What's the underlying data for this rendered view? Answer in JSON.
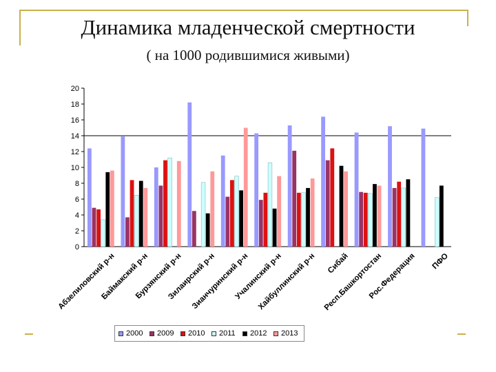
{
  "page": {
    "title": "Динамика младенческой смертности",
    "subtitle": "( на 1000 родившимися живыми)"
  },
  "chart_data": {
    "type": "bar",
    "title": "",
    "xlabel": "",
    "ylabel": "",
    "ylim": [
      0,
      20
    ],
    "yticks": [
      0,
      2,
      4,
      6,
      8,
      10,
      12,
      14,
      16,
      18,
      20
    ],
    "reference_line": 14,
    "legend_position": "bottom",
    "grid": false,
    "categories": [
      "Абзелиловский р-н",
      "Баймакский р-н",
      "Бурзянский р-н",
      "Зилаирский р-н",
      "Зианчуринский р-н",
      "Учалинский р-н",
      "Хайбуллинский р-н",
      "Сибай",
      "Респ.Башкортостан",
      "Рос.Федерация",
      "ПФО"
    ],
    "series": [
      {
        "name": "2000",
        "color": "#9999ff",
        "values": [
          12.4,
          13.9,
          10.0,
          18.2,
          11.5,
          14.3,
          15.3,
          16.4,
          14.4,
          15.2,
          14.9
        ]
      },
      {
        "name": "2009",
        "color": "#993366",
        "values": [
          4.9,
          3.7,
          7.7,
          4.5,
          6.3,
          5.9,
          12.1,
          10.9,
          6.9,
          7.4,
          null
        ]
      },
      {
        "name": "2010",
        "color": "#dd1111",
        "values": [
          4.7,
          8.4,
          10.9,
          null,
          8.4,
          6.8,
          6.8,
          12.4,
          6.8,
          8.2,
          null
        ]
      },
      {
        "name": "2011",
        "color": "#ccffff",
        "values": [
          3.4,
          6.5,
          11.2,
          8.1,
          8.9,
          10.6,
          6.8,
          null,
          6.7,
          7.4,
          6.2
        ]
      },
      {
        "name": "2012",
        "color": "#000000",
        "values": [
          9.4,
          8.3,
          null,
          4.2,
          7.1,
          4.8,
          7.4,
          10.2,
          7.9,
          8.5,
          7.7
        ]
      },
      {
        "name": "2013",
        "color": "#ff9999",
        "values": [
          9.6,
          7.4,
          10.8,
          9.5,
          15.0,
          8.9,
          8.6,
          9.5,
          7.7,
          null,
          null
        ]
      }
    ]
  }
}
